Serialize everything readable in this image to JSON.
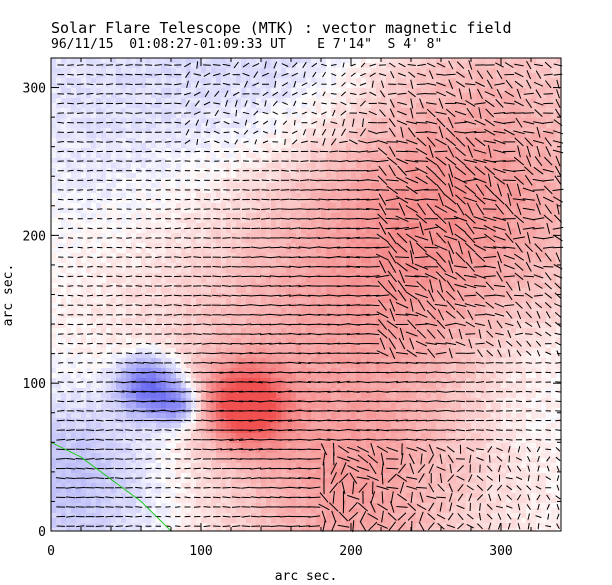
{
  "header": {
    "title": "Solar Flare Telescope (MTK) : vector magnetic field",
    "subtitle": "96/11/15  01:08:27-01:09:33 UT    E 7'14\"  S 4' 8\""
  },
  "colors": {
    "positive": "#f05050",
    "negative": "#5a5af0",
    "vector": "#000000",
    "contour": "#22cc22",
    "frame": "#000000"
  },
  "chart_data": {
    "type": "heatmap",
    "title": "Solar Flare Telescope (MTK) : vector magnetic field",
    "xlabel": "arc sec.",
    "ylabel": "arc sec.",
    "xlim": [
      0,
      340
    ],
    "ylim": [
      0,
      320
    ],
    "x_ticks": [
      0,
      100,
      200,
      300
    ],
    "y_ticks": [
      0,
      100,
      200,
      300
    ],
    "x_tick_labels": [
      "0",
      "100",
      "200",
      "300"
    ],
    "y_tick_labels": [
      "0",
      "100",
      "200",
      "300"
    ],
    "overlay": "transverse field vectors on longitudinal magnetogram",
    "colormap": "red = positive polarity, blue = negative polarity",
    "field_sources": [
      {
        "x": 130,
        "y": 85,
        "strength": 1.0,
        "radius": 18,
        "polarity": "positive"
      },
      {
        "x": 65,
        "y": 98,
        "strength": -0.9,
        "radius": 14,
        "polarity": "negative"
      },
      {
        "x": 85,
        "y": 85,
        "strength": -0.6,
        "radius": 10,
        "polarity": "negative"
      },
      {
        "x": 180,
        "y": 170,
        "strength": 0.45,
        "radius": 110,
        "polarity": "positive"
      },
      {
        "x": 270,
        "y": 240,
        "strength": 0.35,
        "radius": 80,
        "polarity": "positive"
      },
      {
        "x": 100,
        "y": 270,
        "strength": -0.3,
        "radius": 90,
        "polarity": "negative"
      },
      {
        "x": 180,
        "y": 310,
        "strength": -0.2,
        "radius": 50,
        "polarity": "negative"
      },
      {
        "x": 20,
        "y": 40,
        "strength": -0.35,
        "radius": 45,
        "polarity": "negative"
      },
      {
        "x": 320,
        "y": 110,
        "strength": -0.18,
        "radius": 45,
        "polarity": "negative"
      },
      {
        "x": 200,
        "y": 20,
        "strength": 0.3,
        "radius": 50,
        "polarity": "positive"
      }
    ],
    "vector_grid_step": 6.5,
    "contour_line": [
      [
        0,
        60
      ],
      [
        20,
        50
      ],
      [
        40,
        35
      ],
      [
        60,
        20
      ],
      [
        80,
        0
      ]
    ]
  }
}
